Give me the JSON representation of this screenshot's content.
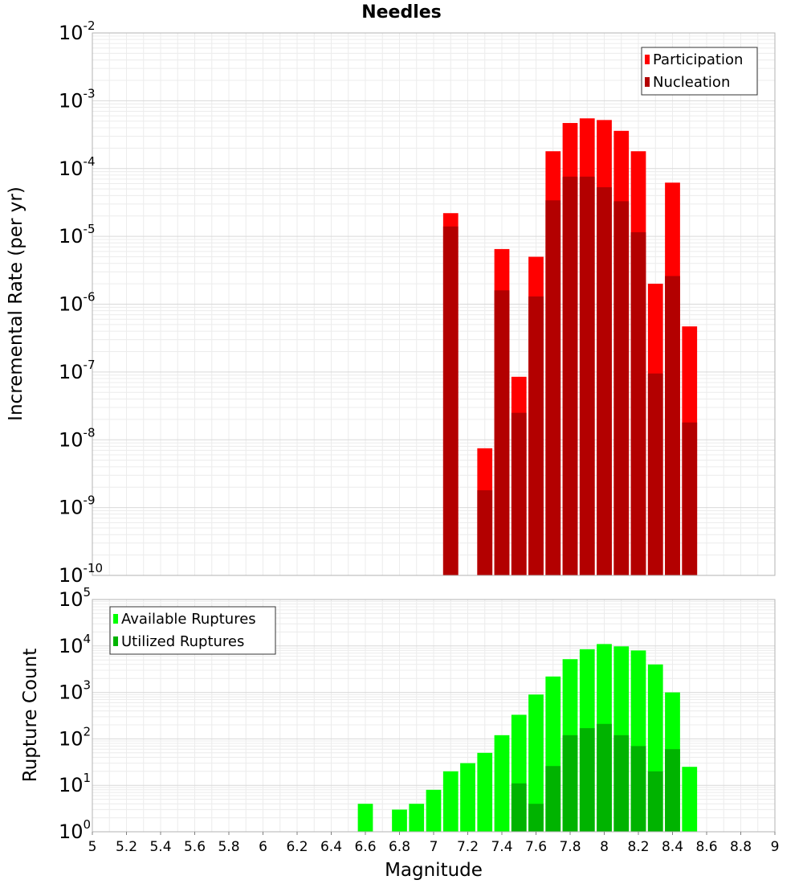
{
  "chart_data": [
    {
      "type": "bar",
      "title": "Needles",
      "xlabel": "",
      "ylabel": "Incremental Rate (per yr)",
      "xlim": [
        5,
        9
      ],
      "ylim": [
        1e-10,
        0.01
      ],
      "yscale": "log",
      "bin_width": 0.1,
      "legend": {
        "position": "top-right"
      },
      "grid": true,
      "x": [
        7.1,
        7.3,
        7.4,
        7.5,
        7.6,
        7.7,
        7.8,
        7.9,
        8.0,
        8.1,
        8.2,
        8.3,
        8.4,
        8.5
      ],
      "series": [
        {
          "name": "Participation",
          "color": "#ff0000",
          "values": [
            2.2e-05,
            7.5e-09,
            6.5e-06,
            8.5e-08,
            5e-06,
            0.00018,
            0.00047,
            0.00055,
            0.00052,
            0.00036,
            0.00018,
            2e-06,
            6.2e-05,
            4.7e-07
          ]
        },
        {
          "name": "Nucleation",
          "color": "#b30000",
          "values": [
            1.4e-05,
            1.8e-09,
            1.6e-06,
            2.5e-08,
            1.3e-06,
            3.4e-05,
            7.6e-05,
            7.6e-05,
            5.3e-05,
            3.3e-05,
            1.15e-05,
            9.5e-08,
            2.6e-06,
            1.8e-08
          ]
        }
      ]
    },
    {
      "type": "bar",
      "title": "",
      "xlabel": "Magnitude",
      "ylabel": "Rupture Count",
      "xlim": [
        5,
        9
      ],
      "ylim": [
        1,
        100000.0
      ],
      "yscale": "log",
      "bin_width": 0.1,
      "legend": {
        "position": "top-left"
      },
      "grid": true,
      "x": [
        6.6,
        6.8,
        6.9,
        7.0,
        7.1,
        7.2,
        7.3,
        7.4,
        7.5,
        7.6,
        7.7,
        7.8,
        7.9,
        8.0,
        8.1,
        8.2,
        8.3,
        8.4,
        8.5
      ],
      "x_ticks": [
        "5",
        "5.2",
        "5.4",
        "5.6",
        "5.8",
        "6",
        "6.2",
        "6.4",
        "6.6",
        "6.8",
        "7",
        "7.2",
        "7.4",
        "7.6",
        "7.8",
        "8",
        "8.2",
        "8.4",
        "8.6",
        "8.8",
        "9"
      ],
      "series": [
        {
          "name": "Available Ruptures",
          "color": "#00ff00",
          "values": [
            4,
            3,
            4,
            8,
            20,
            30,
            50,
            120,
            330,
            900,
            2200,
            5200,
            8500,
            11000,
            9800,
            8000,
            4000,
            1000,
            25
          ]
        },
        {
          "name": "Utilized Ruptures",
          "color": "#00b300",
          "values": [
            0,
            0,
            0,
            0,
            1,
            0,
            1,
            1,
            11,
            4,
            26,
            120,
            170,
            210,
            120,
            70,
            20,
            60,
            1
          ]
        }
      ]
    }
  ]
}
